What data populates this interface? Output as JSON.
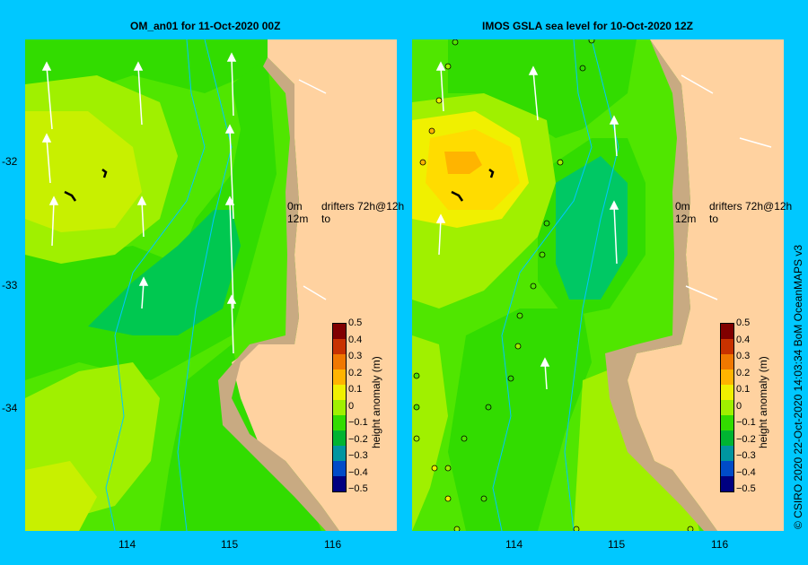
{
  "panels": [
    {
      "title": "OM_an01  for 11-Oct-2020 00Z"
    },
    {
      "title": "IMOS GSLA sea level  for 10-Oct-2020 12Z"
    }
  ],
  "y_ticks": [
    "-32",
    "-33",
    "-34"
  ],
  "x_ticks": [
    "114",
    "115",
    "116"
  ],
  "legend": {
    "line1_left": "0m",
    "line1_right": "drifters 72h@12h",
    "line2_left": "12m",
    "line2_right": "to"
  },
  "colorbar": {
    "title": "height anomaly (m)",
    "labels": [
      "0.5",
      "0.4",
      "0.3",
      "0.2",
      "0.1",
      "0",
      "−0.1",
      "−0.2",
      "−0.3",
      "−0.4",
      "−0.5"
    ],
    "colors": [
      "#800000",
      "#c83200",
      "#f07800",
      "#ffb400",
      "#f0f000",
      "#a0f000",
      "#32dc00",
      "#00b432",
      "#0096a0",
      "#004bc8",
      "#000080"
    ]
  },
  "credit": "© CSIRO 2020   22-Oct-2020 14:03:34 BoM OceanMAPS v3",
  "colors": {
    "background": "#00c8ff",
    "land": "#ffd2a0",
    "coast_shelf": "#c8aa82",
    "isobath": "#00c8ff"
  }
}
